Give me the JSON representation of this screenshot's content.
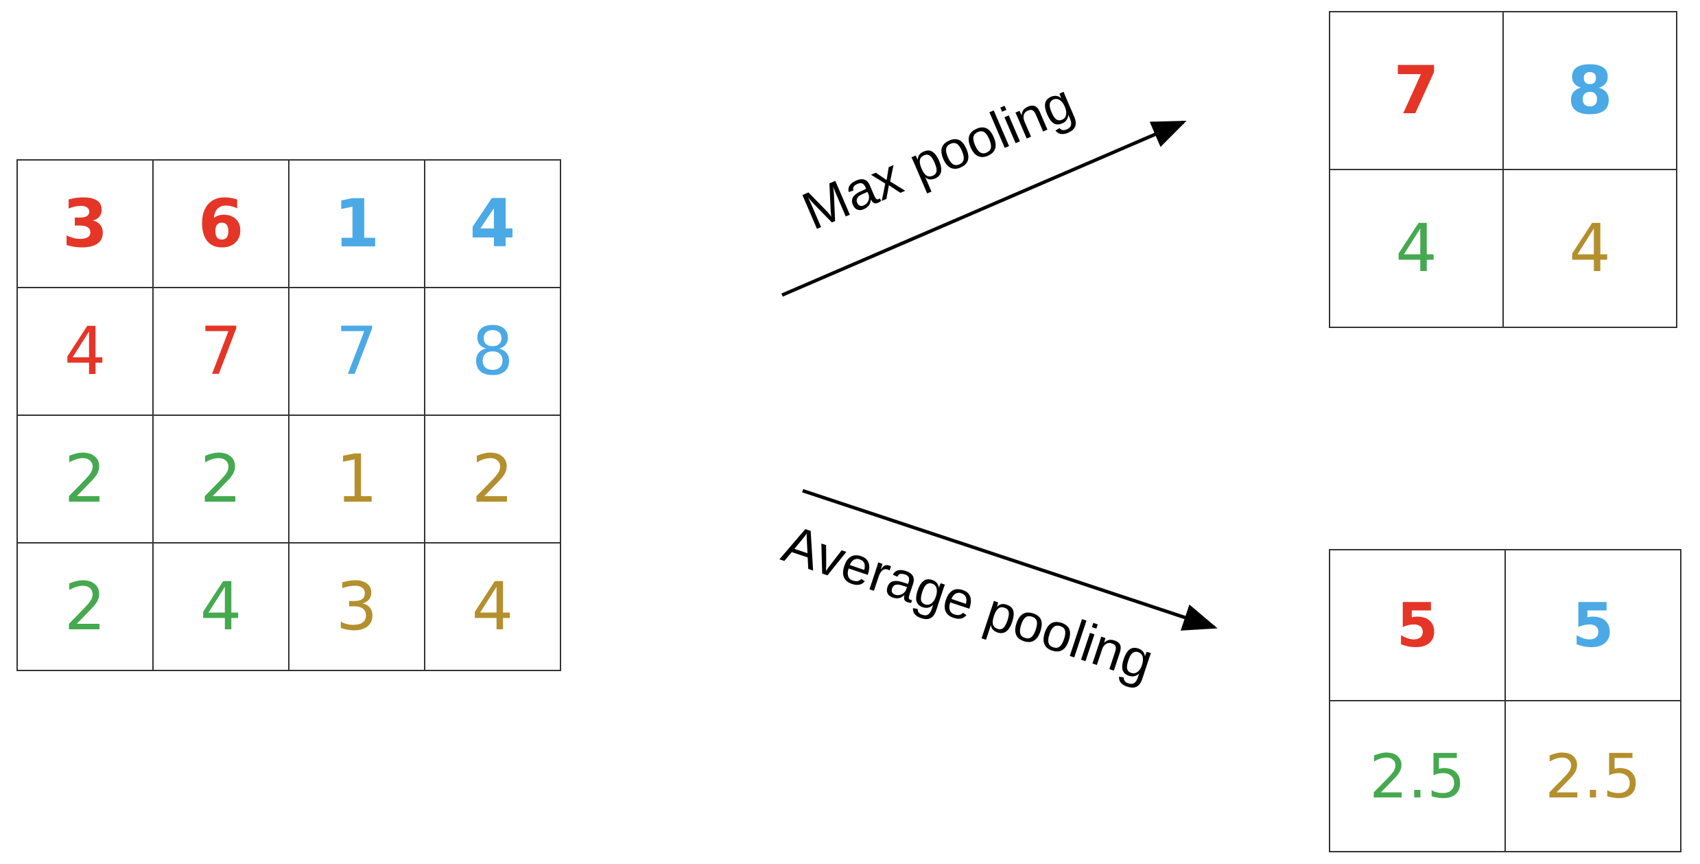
{
  "input_matrix": {
    "rows": [
      [
        {
          "value": "3",
          "color": "#e53527",
          "bold": true
        },
        {
          "value": "6",
          "color": "#e53527",
          "bold": true
        },
        {
          "value": "1",
          "color": "#4ba9e6",
          "bold": true
        },
        {
          "value": "4",
          "color": "#4ba9e6",
          "bold": true
        }
      ],
      [
        {
          "value": "4",
          "color": "#e53527",
          "bold": false
        },
        {
          "value": "7",
          "color": "#e53527",
          "bold": false
        },
        {
          "value": "7",
          "color": "#4ba9e6",
          "bold": false
        },
        {
          "value": "8",
          "color": "#4ba9e6",
          "bold": false
        }
      ],
      [
        {
          "value": "2",
          "color": "#45a94f",
          "bold": false
        },
        {
          "value": "2",
          "color": "#45a94f",
          "bold": false
        },
        {
          "value": "1",
          "color": "#b48f2d",
          "bold": false
        },
        {
          "value": "2",
          "color": "#b48f2d",
          "bold": false
        }
      ],
      [
        {
          "value": "2",
          "color": "#45a94f",
          "bold": false
        },
        {
          "value": "4",
          "color": "#45a94f",
          "bold": false
        },
        {
          "value": "3",
          "color": "#b48f2d",
          "bold": false
        },
        {
          "value": "4",
          "color": "#b48f2d",
          "bold": false
        }
      ]
    ]
  },
  "max_pooling": {
    "label": "Max pooling",
    "rows": [
      [
        {
          "value": "7",
          "color": "#e53527",
          "bold": true
        },
        {
          "value": "8",
          "color": "#4ba9e6",
          "bold": true
        }
      ],
      [
        {
          "value": "4",
          "color": "#45a94f",
          "bold": false
        },
        {
          "value": "4",
          "color": "#b48f2d",
          "bold": false
        }
      ]
    ]
  },
  "average_pooling": {
    "label": "Average pooling",
    "rows": [
      [
        {
          "value": "5",
          "color": "#e53527",
          "bold": true
        },
        {
          "value": "5",
          "color": "#4ba9e6",
          "bold": true
        }
      ],
      [
        {
          "value": "2.5",
          "color": "#45a94f",
          "bold": false
        },
        {
          "value": "2.5",
          "color": "#b48f2d",
          "bold": false
        }
      ]
    ]
  }
}
